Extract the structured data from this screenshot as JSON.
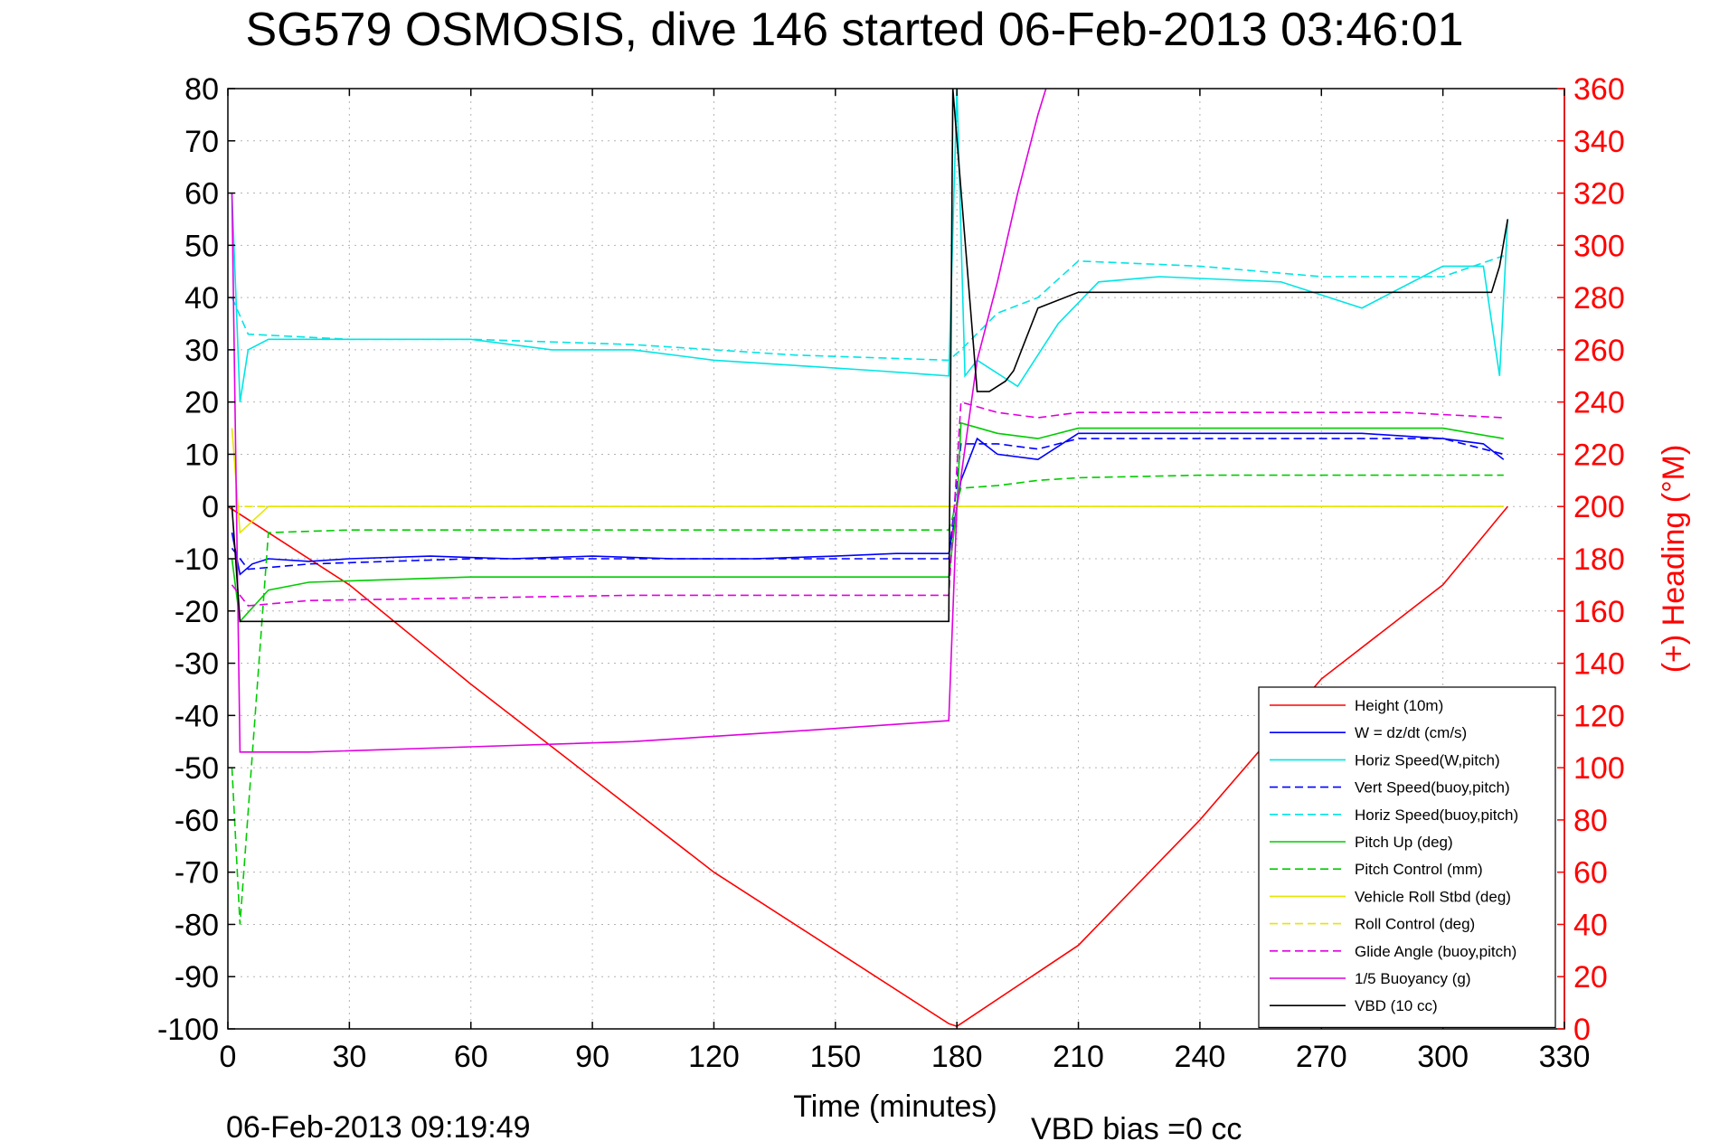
{
  "chart_data": {
    "type": "line",
    "title": "SG579 OSMOSIS, dive 146 started 06-Feb-2013 03:46:01",
    "xlabel": "Time (minutes)",
    "ylabel_right": "(+) Heading (°M)",
    "xlim": [
      0,
      330
    ],
    "ylim": [
      -100,
      80
    ],
    "ylim_right": [
      0,
      360
    ],
    "x_ticks": [
      0,
      30,
      60,
      90,
      120,
      150,
      180,
      210,
      240,
      270,
      300,
      330
    ],
    "y_ticks": [
      -100,
      -90,
      -80,
      -70,
      -60,
      -50,
      -40,
      -30,
      -20,
      -10,
      0,
      10,
      20,
      30,
      40,
      50,
      60,
      70,
      80
    ],
    "y_right_ticks": [
      0,
      20,
      40,
      60,
      80,
      100,
      120,
      140,
      160,
      180,
      200,
      220,
      240,
      260,
      280,
      300,
      320,
      340,
      360
    ],
    "grid": true,
    "legend_position": "lower-right",
    "footer_timestamp": "06-Feb-2013 09:19:49",
    "footer_note": "VBD bias =0 cc",
    "series": [
      {
        "name": "Height (10m)",
        "color": "#ff0000",
        "style": "solid",
        "x": [
          0,
          30,
          60,
          90,
          120,
          150,
          178,
          180,
          181,
          210,
          240,
          270,
          300,
          316
        ],
        "y": [
          0,
          -15,
          -34,
          -52,
          -70,
          -85,
          -99,
          -99.5,
          -99,
          -84,
          -60,
          -33,
          -15,
          0
        ]
      },
      {
        "name": "W = dz/dt (cm/s)",
        "color": "#0000ff",
        "style": "solid",
        "x": [
          1,
          3,
          6,
          10,
          20,
          30,
          50,
          70,
          90,
          110,
          130,
          150,
          165,
          178,
          180,
          181,
          185,
          190,
          200,
          210,
          250,
          280,
          300,
          310,
          315
        ],
        "y": [
          -5,
          -13,
          -11,
          -10,
          -10.5,
          -10,
          -9.5,
          -10,
          -9.5,
          -10,
          -10,
          -9.5,
          -9,
          -9,
          0,
          5,
          13,
          10,
          9,
          14,
          14,
          14,
          13,
          12,
          9
        ]
      },
      {
        "name": "Horiz Speed(W,pitch)",
        "color": "#00e5e5",
        "style": "solid",
        "x": [
          1,
          3,
          5,
          10,
          20,
          40,
          60,
          80,
          100,
          120,
          140,
          160,
          178,
          180,
          182,
          185,
          195,
          205,
          215,
          230,
          260,
          280,
          300,
          310,
          314,
          316
        ],
        "y": [
          60,
          20,
          30,
          32,
          32,
          32,
          32,
          30,
          30,
          28,
          27,
          26,
          25,
          80,
          25,
          28,
          23,
          35,
          43,
          44,
          43,
          38,
          46,
          46,
          25,
          55
        ]
      },
      {
        "name": "Vert Speed(buoy,pitch)",
        "color": "#0000ff",
        "style": "dashed",
        "x": [
          1,
          5,
          20,
          60,
          100,
          140,
          178,
          181,
          190,
          200,
          210,
          260,
          300,
          315
        ],
        "y": [
          -8,
          -12,
          -11,
          -10,
          -10,
          -10,
          -10,
          12,
          12,
          11,
          13,
          13,
          13,
          10
        ]
      },
      {
        "name": "Horiz Speed(buoy,pitch)",
        "color": "#00e5e5",
        "style": "dashed",
        "x": [
          1,
          5,
          30,
          60,
          100,
          140,
          178,
          181,
          190,
          200,
          210,
          240,
          270,
          300,
          315
        ],
        "y": [
          40,
          33,
          32,
          32,
          31,
          29,
          28,
          30,
          37,
          40,
          47,
          46,
          44,
          44,
          48
        ]
      },
      {
        "name": "Pitch Up (deg)",
        "color": "#00cc00",
        "style": "solid",
        "x": [
          1,
          3,
          10,
          20,
          40,
          60,
          100,
          140,
          178,
          180,
          181,
          190,
          200,
          210,
          260,
          300,
          315
        ],
        "y": [
          -10,
          -22,
          -16,
          -14.5,
          -14,
          -13.5,
          -13.5,
          -13.5,
          -13.5,
          0,
          16,
          14,
          13,
          15,
          15,
          15,
          13
        ]
      },
      {
        "name": "Pitch Control (mm)",
        "color": "#00cc00",
        "style": "dashed",
        "x": [
          1,
          3,
          10,
          30,
          60,
          100,
          140,
          178,
          181,
          190,
          200,
          210,
          240,
          270,
          300,
          315
        ],
        "y": [
          -50,
          -80,
          -5,
          -4.5,
          -4.5,
          -4.5,
          -4.5,
          -4.5,
          3.5,
          4,
          5,
          5.5,
          6,
          6,
          6,
          6
        ]
      },
      {
        "name": "Vehicle Roll Stbd (deg)",
        "color": "#e5e500",
        "style": "solid",
        "x": [
          1,
          3,
          10,
          30,
          60,
          90,
          120,
          150,
          178,
          181,
          200,
          240,
          280,
          315
        ],
        "y": [
          15,
          -5,
          0,
          0,
          0,
          0,
          0,
          0,
          0,
          0,
          0,
          0,
          0,
          0
        ]
      },
      {
        "name": "Roll Control (deg)",
        "color": "#e5e500",
        "style": "dashed",
        "x": [
          1,
          30,
          60,
          120,
          180,
          240,
          315
        ],
        "y": [
          0,
          0,
          0,
          0,
          0,
          0,
          0
        ]
      },
      {
        "name": "Glide Angle (buoy,pitch)",
        "color": "#e000e0",
        "style": "dashed",
        "x": [
          1,
          5,
          20,
          60,
          100,
          140,
          178,
          181,
          190,
          200,
          210,
          250,
          290,
          315
        ],
        "y": [
          -15,
          -19,
          -18,
          -17.5,
          -17,
          -17,
          -17,
          20,
          18,
          17,
          18,
          18,
          18,
          17
        ]
      },
      {
        "name": "1/5 Buoyancy (g)",
        "color": "#e000e0",
        "style": "solid",
        "x": [
          1,
          3,
          20,
          60,
          100,
          140,
          178,
          180,
          185,
          190,
          195,
          200,
          202
        ],
        "y": [
          60,
          -47,
          -47,
          -46,
          -45,
          -43,
          -41,
          0,
          28,
          43,
          60,
          75,
          80
        ]
      },
      {
        "name": "VBD (10 cc)",
        "color": "#000000",
        "style": "solid",
        "x": [
          1,
          3,
          178,
          179,
          185,
          188,
          190,
          192,
          194,
          196,
          198,
          200,
          210,
          312,
          314,
          316
        ],
        "y": [
          0,
          -22,
          -22,
          80,
          22,
          22,
          23,
          24,
          26,
          30,
          34,
          38,
          41,
          41,
          46,
          55
        ]
      }
    ]
  }
}
